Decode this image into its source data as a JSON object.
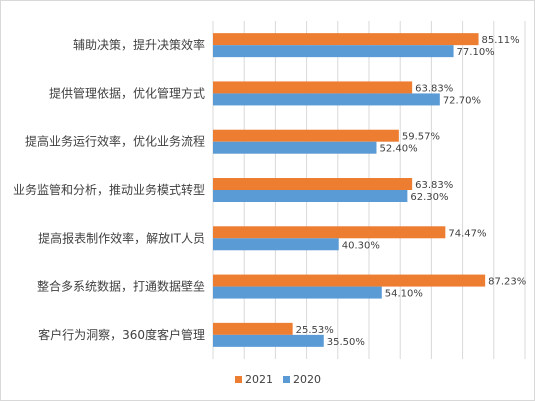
{
  "chart_data": {
    "type": "bar",
    "orientation": "horizontal",
    "categories": [
      "辅助决策，提升决策效率",
      "提供管理依据，优化管理方式",
      "提高业务运行效率，优化业务流程",
      "业务监管和分析，推动业务模式转型",
      "提高报表制作效率，解放IT人员",
      "整合多系统数据，打通数据壁垒",
      "客户行为洞察，360度客户管理"
    ],
    "series": [
      {
        "name": "2021",
        "color": "#ED7D31",
        "values": [
          85.11,
          63.83,
          59.57,
          63.83,
          74.47,
          87.23,
          25.53
        ],
        "labels": [
          "85.11%",
          "63.83%",
          "59.57%",
          "63.83%",
          "74.47%",
          "87.23%",
          "25.53%"
        ]
      },
      {
        "name": "2020",
        "color": "#5B9BD5",
        "values": [
          77.1,
          72.7,
          52.4,
          62.3,
          40.3,
          54.1,
          35.5
        ],
        "labels": [
          "77.10%",
          "72.70%",
          "52.40%",
          "62.30%",
          "40.30%",
          "54.10%",
          "35.50%"
        ]
      }
    ],
    "xlim": [
      0,
      100
    ],
    "grid": true,
    "legend_position": "bottom-center",
    "title": "",
    "xlabel": "",
    "ylabel": ""
  }
}
